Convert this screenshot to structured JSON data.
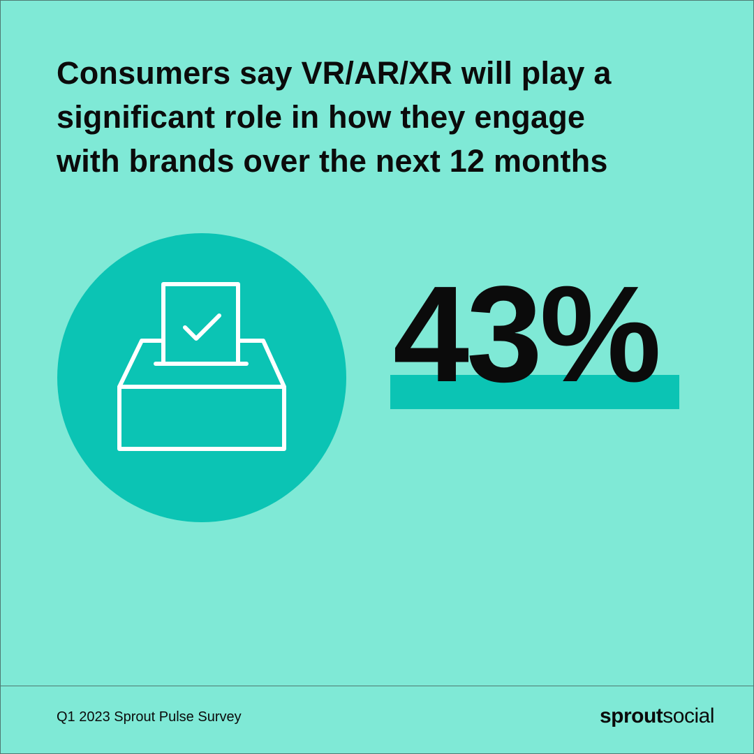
{
  "header": {
    "title_lines": [
      "Consumers say VR/AR/XR will play a",
      "significant role in how they engage",
      "with brands over the next 12 months"
    ]
  },
  "stat": {
    "value": "43%"
  },
  "footer": {
    "source": "Q1 2023 Sprout Pulse Survey",
    "brand": {
      "bold": "sprout",
      "light": "social"
    }
  }
}
